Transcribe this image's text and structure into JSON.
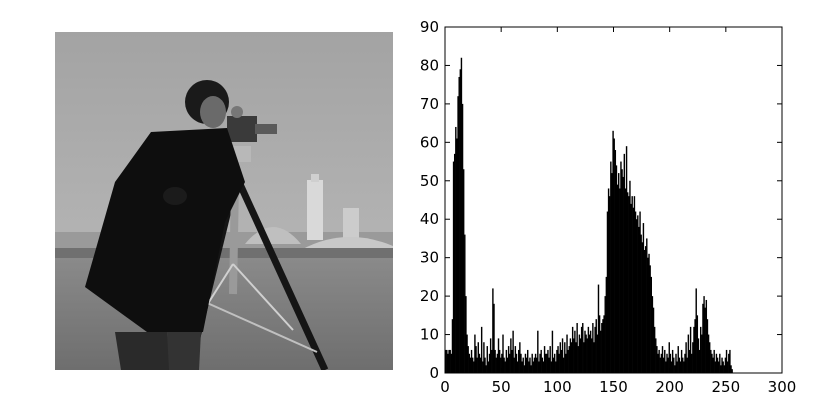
{
  "image_panel": {
    "subject": "grayscale photograph: cameraman with a film camera on a tripod, grass field and distant buildings"
  },
  "chart_data": {
    "type": "bar",
    "xlim": [
      0,
      300
    ],
    "ylim": [
      0,
      90
    ],
    "xticks": [
      0,
      50,
      100,
      150,
      200,
      250,
      300
    ],
    "yticks": [
      0,
      10,
      20,
      30,
      40,
      50,
      60,
      70,
      80,
      90
    ],
    "grid": false,
    "bar_color": "#000000",
    "bins": [
      [
        0,
        6
      ],
      [
        1,
        6
      ],
      [
        2,
        5
      ],
      [
        3,
        6
      ],
      [
        4,
        6
      ],
      [
        5,
        5
      ],
      [
        6,
        14
      ],
      [
        7,
        55
      ],
      [
        8,
        57
      ],
      [
        9,
        64
      ],
      [
        10,
        61
      ],
      [
        11,
        72
      ],
      [
        12,
        77
      ],
      [
        13,
        79
      ],
      [
        14,
        82
      ],
      [
        15,
        70
      ],
      [
        16,
        53
      ],
      [
        17,
        36
      ],
      [
        18,
        20
      ],
      [
        19,
        10
      ],
      [
        20,
        7
      ],
      [
        21,
        5
      ],
      [
        22,
        4
      ],
      [
        23,
        6
      ],
      [
        24,
        4
      ],
      [
        25,
        3
      ],
      [
        26,
        10
      ],
      [
        27,
        7
      ],
      [
        28,
        4
      ],
      [
        29,
        8
      ],
      [
        30,
        5
      ],
      [
        31,
        4
      ],
      [
        32,
        12
      ],
      [
        33,
        3
      ],
      [
        34,
        8
      ],
      [
        35,
        4
      ],
      [
        36,
        2
      ],
      [
        37,
        7
      ],
      [
        38,
        3
      ],
      [
        39,
        5
      ],
      [
        40,
        9
      ],
      [
        41,
        6
      ],
      [
        42,
        22
      ],
      [
        43,
        18
      ],
      [
        44,
        6
      ],
      [
        45,
        4
      ],
      [
        46,
        5
      ],
      [
        47,
        9
      ],
      [
        48,
        6
      ],
      [
        49,
        4
      ],
      [
        50,
        5
      ],
      [
        51,
        10
      ],
      [
        52,
        4
      ],
      [
        53,
        3
      ],
      [
        54,
        6
      ],
      [
        55,
        4
      ],
      [
        56,
        7
      ],
      [
        57,
        5
      ],
      [
        58,
        9
      ],
      [
        59,
        6
      ],
      [
        60,
        11
      ],
      [
        61,
        4
      ],
      [
        62,
        7
      ],
      [
        63,
        5
      ],
      [
        64,
        3
      ],
      [
        65,
        6
      ],
      [
        66,
        8
      ],
      [
        67,
        5
      ],
      [
        68,
        3
      ],
      [
        69,
        4
      ],
      [
        70,
        2
      ],
      [
        71,
        5
      ],
      [
        72,
        4
      ],
      [
        73,
        6
      ],
      [
        74,
        3
      ],
      [
        75,
        4
      ],
      [
        76,
        2
      ],
      [
        77,
        5
      ],
      [
        78,
        3
      ],
      [
        79,
        4
      ],
      [
        80,
        5
      ],
      [
        81,
        4
      ],
      [
        82,
        11
      ],
      [
        83,
        3
      ],
      [
        84,
        5
      ],
      [
        85,
        6
      ],
      [
        86,
        4
      ],
      [
        87,
        3
      ],
      [
        88,
        7
      ],
      [
        89,
        5
      ],
      [
        90,
        5
      ],
      [
        91,
        6
      ],
      [
        92,
        4
      ],
      [
        93,
        7
      ],
      [
        94,
        3
      ],
      [
        95,
        11
      ],
      [
        96,
        4
      ],
      [
        97,
        5
      ],
      [
        98,
        3
      ],
      [
        99,
        6
      ],
      [
        100,
        7
      ],
      [
        101,
        5
      ],
      [
        102,
        8
      ],
      [
        103,
        6
      ],
      [
        104,
        9
      ],
      [
        105,
        4
      ],
      [
        106,
        8
      ],
      [
        107,
        5
      ],
      [
        108,
        10
      ],
      [
        109,
        6
      ],
      [
        110,
        7
      ],
      [
        111,
        9
      ],
      [
        112,
        8
      ],
      [
        113,
        12
      ],
      [
        114,
        9
      ],
      [
        115,
        11
      ],
      [
        116,
        8
      ],
      [
        117,
        13
      ],
      [
        118,
        7
      ],
      [
        119,
        10
      ],
      [
        120,
        9
      ],
      [
        121,
        12
      ],
      [
        122,
        13
      ],
      [
        123,
        8
      ],
      [
        124,
        11
      ],
      [
        125,
        10
      ],
      [
        126,
        9
      ],
      [
        127,
        12
      ],
      [
        128,
        10
      ],
      [
        129,
        11
      ],
      [
        130,
        9
      ],
      [
        131,
        13
      ],
      [
        132,
        8
      ],
      [
        133,
        12
      ],
      [
        134,
        14
      ],
      [
        135,
        10
      ],
      [
        136,
        23
      ],
      [
        137,
        15
      ],
      [
        138,
        11
      ],
      [
        139,
        13
      ],
      [
        140,
        14
      ],
      [
        141,
        15
      ],
      [
        142,
        20
      ],
      [
        143,
        25
      ],
      [
        144,
        42
      ],
      [
        145,
        48
      ],
      [
        146,
        46
      ],
      [
        147,
        55
      ],
      [
        148,
        52
      ],
      [
        149,
        63
      ],
      [
        150,
        61
      ],
      [
        151,
        58
      ],
      [
        152,
        54
      ],
      [
        153,
        49
      ],
      [
        154,
        52
      ],
      [
        155,
        48
      ],
      [
        156,
        55
      ],
      [
        157,
        53
      ],
      [
        158,
        51
      ],
      [
        159,
        57
      ],
      [
        160,
        48
      ],
      [
        161,
        59
      ],
      [
        162,
        47
      ],
      [
        163,
        46
      ],
      [
        164,
        50
      ],
      [
        165,
        44
      ],
      [
        166,
        46
      ],
      [
        167,
        43
      ],
      [
        168,
        46
      ],
      [
        169,
        42
      ],
      [
        170,
        40
      ],
      [
        171,
        41
      ],
      [
        172,
        38
      ],
      [
        173,
        42
      ],
      [
        174,
        36
      ],
      [
        175,
        34
      ],
      [
        176,
        39
      ],
      [
        177,
        32
      ],
      [
        178,
        33
      ],
      [
        179,
        35
      ],
      [
        180,
        30
      ],
      [
        181,
        31
      ],
      [
        182,
        28
      ],
      [
        183,
        25
      ],
      [
        184,
        20
      ],
      [
        185,
        17
      ],
      [
        186,
        12
      ],
      [
        187,
        9
      ],
      [
        188,
        7
      ],
      [
        189,
        5
      ],
      [
        190,
        6
      ],
      [
        191,
        4
      ],
      [
        192,
        5
      ],
      [
        193,
        7
      ],
      [
        194,
        4
      ],
      [
        195,
        6
      ],
      [
        196,
        3
      ],
      [
        197,
        5
      ],
      [
        198,
        4
      ],
      [
        199,
        8
      ],
      [
        200,
        5
      ],
      [
        201,
        3
      ],
      [
        202,
        6
      ],
      [
        203,
        4
      ],
      [
        204,
        2
      ],
      [
        205,
        5
      ],
      [
        206,
        3
      ],
      [
        207,
        7
      ],
      [
        208,
        4
      ],
      [
        209,
        3
      ],
      [
        210,
        6
      ],
      [
        211,
        4
      ],
      [
        212,
        3
      ],
      [
        213,
        5
      ],
      [
        214,
        8
      ],
      [
        215,
        4
      ],
      [
        216,
        10
      ],
      [
        217,
        6
      ],
      [
        218,
        12
      ],
      [
        219,
        5
      ],
      [
        220,
        8
      ],
      [
        221,
        12
      ],
      [
        222,
        14
      ],
      [
        223,
        22
      ],
      [
        224,
        15
      ],
      [
        225,
        9
      ],
      [
        226,
        6
      ],
      [
        227,
        12
      ],
      [
        228,
        10
      ],
      [
        229,
        18
      ],
      [
        230,
        20
      ],
      [
        231,
        17
      ],
      [
        232,
        19
      ],
      [
        233,
        14
      ],
      [
        234,
        10
      ],
      [
        235,
        8
      ],
      [
        236,
        6
      ],
      [
        237,
        5
      ],
      [
        238,
        4
      ],
      [
        239,
        6
      ],
      [
        240,
        3
      ],
      [
        241,
        5
      ],
      [
        242,
        4
      ],
      [
        243,
        3
      ],
      [
        244,
        5
      ],
      [
        245,
        2
      ],
      [
        246,
        4
      ],
      [
        247,
        3
      ],
      [
        248,
        2
      ],
      [
        249,
        4
      ],
      [
        250,
        6
      ],
      [
        251,
        3
      ],
      [
        252,
        5
      ],
      [
        253,
        6
      ],
      [
        254,
        2
      ],
      [
        255,
        1
      ]
    ]
  }
}
